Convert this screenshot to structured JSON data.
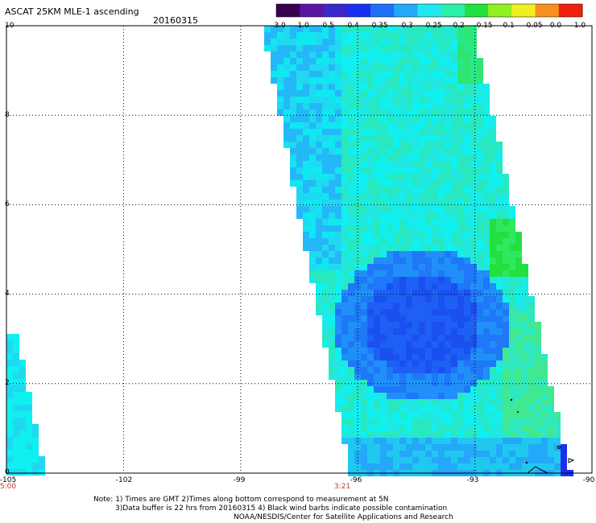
{
  "header": {
    "title": "ASCAT 25KM MLE-1 ascending",
    "date": "20160315"
  },
  "colorbar": {
    "ticks": [
      "-3.0",
      "-1.0",
      "-0.5",
      "-0.4",
      "-0.35",
      "-0.3",
      "-0.25",
      "-0.2",
      "-0.15",
      "-0.1",
      "-0.05",
      "0.0",
      "1.0"
    ],
    "colors": [
      "#3a0050",
      "#5a16a0",
      "#3a28c8",
      "#1a30f0",
      "#1e70f8",
      "#24a8f8",
      "#20e8f0",
      "#28f0a8",
      "#22e040",
      "#90f020",
      "#f0f020",
      "#f89020",
      "#f02010"
    ]
  },
  "axes": {
    "x_ticks": [
      "-105",
      "-102",
      "-99",
      "-96",
      "-93",
      "-90"
    ],
    "y_ticks": [
      "0",
      "2",
      "4",
      "6",
      "8",
      "10"
    ],
    "x_range": [
      -105,
      -90
    ],
    "y_range": [
      0,
      10
    ]
  },
  "times": [
    "5:00",
    "3:21"
  ],
  "notes": [
    "Note: 1) Times are GMT 2)Times along bottom correspond to measurement at 5N",
    "3)Data buffer is 22 hrs from 20160315 4) Black wind barbs indicate possible contamination",
    "NOAA/NESDIS/Center for Satellite Applications and Research"
  ]
}
